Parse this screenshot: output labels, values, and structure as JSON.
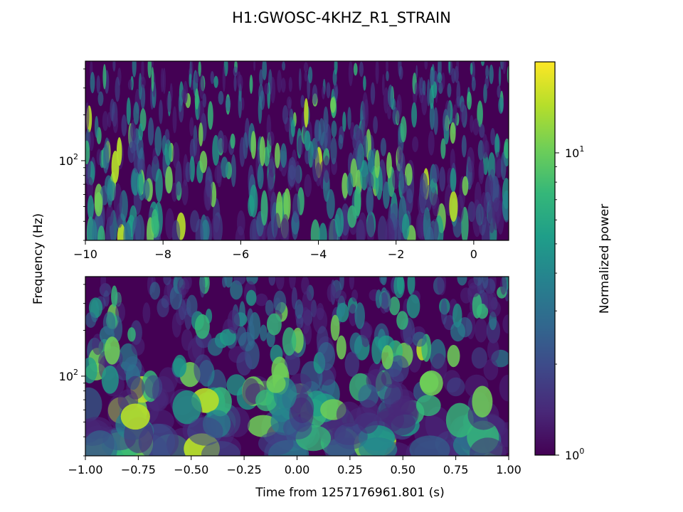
{
  "figure": {
    "title": "H1:GWOSC-4KHZ_R1_STRAIN",
    "ylabel": "Frequency (Hz)",
    "xlabel": "Time from 1257176961.801 (s)"
  },
  "chart_data": [
    {
      "type": "heatmap",
      "panel": "top",
      "xlim": [
        -10,
        0.9
      ],
      "ylim": [
        30,
        450
      ],
      "yscale": "log",
      "x_ticks": [
        -10,
        -8,
        -6,
        -4,
        -2,
        0
      ],
      "x_tick_labels": [
        "−10",
        "−8",
        "−6",
        "−4",
        "−2",
        "0"
      ],
      "y_major_ticks": [
        100
      ],
      "y_tick_labels": [
        {
          "base": "10",
          "exp": "2"
        }
      ],
      "colormap": "viridis"
    },
    {
      "type": "heatmap",
      "panel": "bottom",
      "xlim": [
        -1.0,
        1.0
      ],
      "ylim": [
        30,
        450
      ],
      "yscale": "log",
      "x_ticks": [
        -1.0,
        -0.75,
        -0.5,
        -0.25,
        0.0,
        0.25,
        0.5,
        0.75,
        1.0
      ],
      "x_tick_labels": [
        "−1.00",
        "−0.75",
        "−0.50",
        "−0.25",
        "0.00",
        "0.25",
        "0.50",
        "0.75",
        "1.00"
      ],
      "y_major_ticks": [
        100
      ],
      "y_tick_labels": [
        {
          "base": "10",
          "exp": "2"
        }
      ],
      "colormap": "viridis"
    }
  ],
  "colorbar": {
    "label": "Normalized power",
    "scale": "log",
    "range": [
      1,
      20
    ],
    "tick_values": [
      1,
      10
    ],
    "tick_labels": [
      {
        "base": "10",
        "exp": "0"
      },
      {
        "base": "10",
        "exp": "1"
      }
    ],
    "colors": [
      "#440154",
      "#482878",
      "#3e4989",
      "#31688e",
      "#26828e",
      "#1f9e89",
      "#35b779",
      "#6ece58",
      "#b5de2b",
      "#fde725"
    ]
  }
}
